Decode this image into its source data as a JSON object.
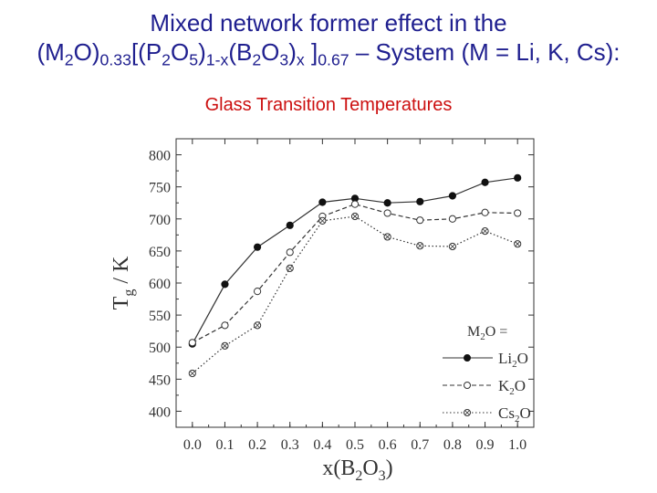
{
  "page": {
    "title_line1": "Mixed network former effect in  the",
    "title_line2": {
      "a": "(M",
      "a_sub": "2",
      "b": "O)",
      "b_sub": "0.33",
      "c": "[(P",
      "c_sub": "2",
      "d": "O",
      "d_sub": "5",
      "e": ")",
      "e_sub": "1-x",
      "f": "(B",
      "f_sub": "2",
      "g": "O",
      "g_sub": "3",
      "h": ")",
      "h_sub": "x",
      "i": " ]",
      "i_sub": "0.67",
      "j": " – System (M = Li, K, Cs):"
    },
    "subtitle": "Glass Transition Temperatures",
    "colors": {
      "title": "#1f1f8f",
      "subtitle": "#cc1010",
      "plot": "#333333"
    }
  },
  "chart_data": {
    "type": "line",
    "xlabel": {
      "a": "x(B",
      "a_sub": "2",
      "b": "O",
      "b_sub": "3",
      "c": ")"
    },
    "ylabel": {
      "a": "T",
      "a_sub": "g",
      "b": " / K"
    },
    "xlim": [
      -0.05,
      1.05
    ],
    "ylim": [
      375,
      825
    ],
    "xticks": [
      "0.0",
      "0.1",
      "0.2",
      "0.3",
      "0.4",
      "0.5",
      "0.6",
      "0.7",
      "0.8",
      "0.9",
      "1.0"
    ],
    "yticks": [
      "400",
      "450",
      "500",
      "550",
      "600",
      "650",
      "700",
      "750",
      "800"
    ],
    "x": [
      0.0,
      0.1,
      0.2,
      0.3,
      0.4,
      0.5,
      0.6,
      0.7,
      0.8,
      0.9,
      1.0
    ],
    "legend": {
      "title": {
        "a": "M",
        "a_sub": "2",
        "b": "O ="
      },
      "placement": "lower-right",
      "labels": [
        {
          "a": "Li",
          "a_sub": "2",
          "b": "O"
        },
        {
          "a": "K",
          "a_sub": "2",
          "b": "O"
        },
        {
          "a": "Cs",
          "a_sub": "2",
          "b": "O"
        }
      ]
    },
    "series": [
      {
        "marker": "filled-circle",
        "line": "solid",
        "values": [
          505,
          598,
          656,
          690,
          726,
          732,
          725,
          727,
          736,
          757,
          764
        ]
      },
      {
        "marker": "open-circle",
        "line": "dashed",
        "values": [
          507,
          534,
          587,
          648,
          704,
          723,
          709,
          698,
          700,
          710,
          709
        ]
      },
      {
        "marker": "crossed-circle",
        "line": "dotted",
        "values": [
          459,
          502,
          534,
          623,
          697,
          704,
          672,
          658,
          657,
          681,
          661
        ]
      }
    ]
  }
}
